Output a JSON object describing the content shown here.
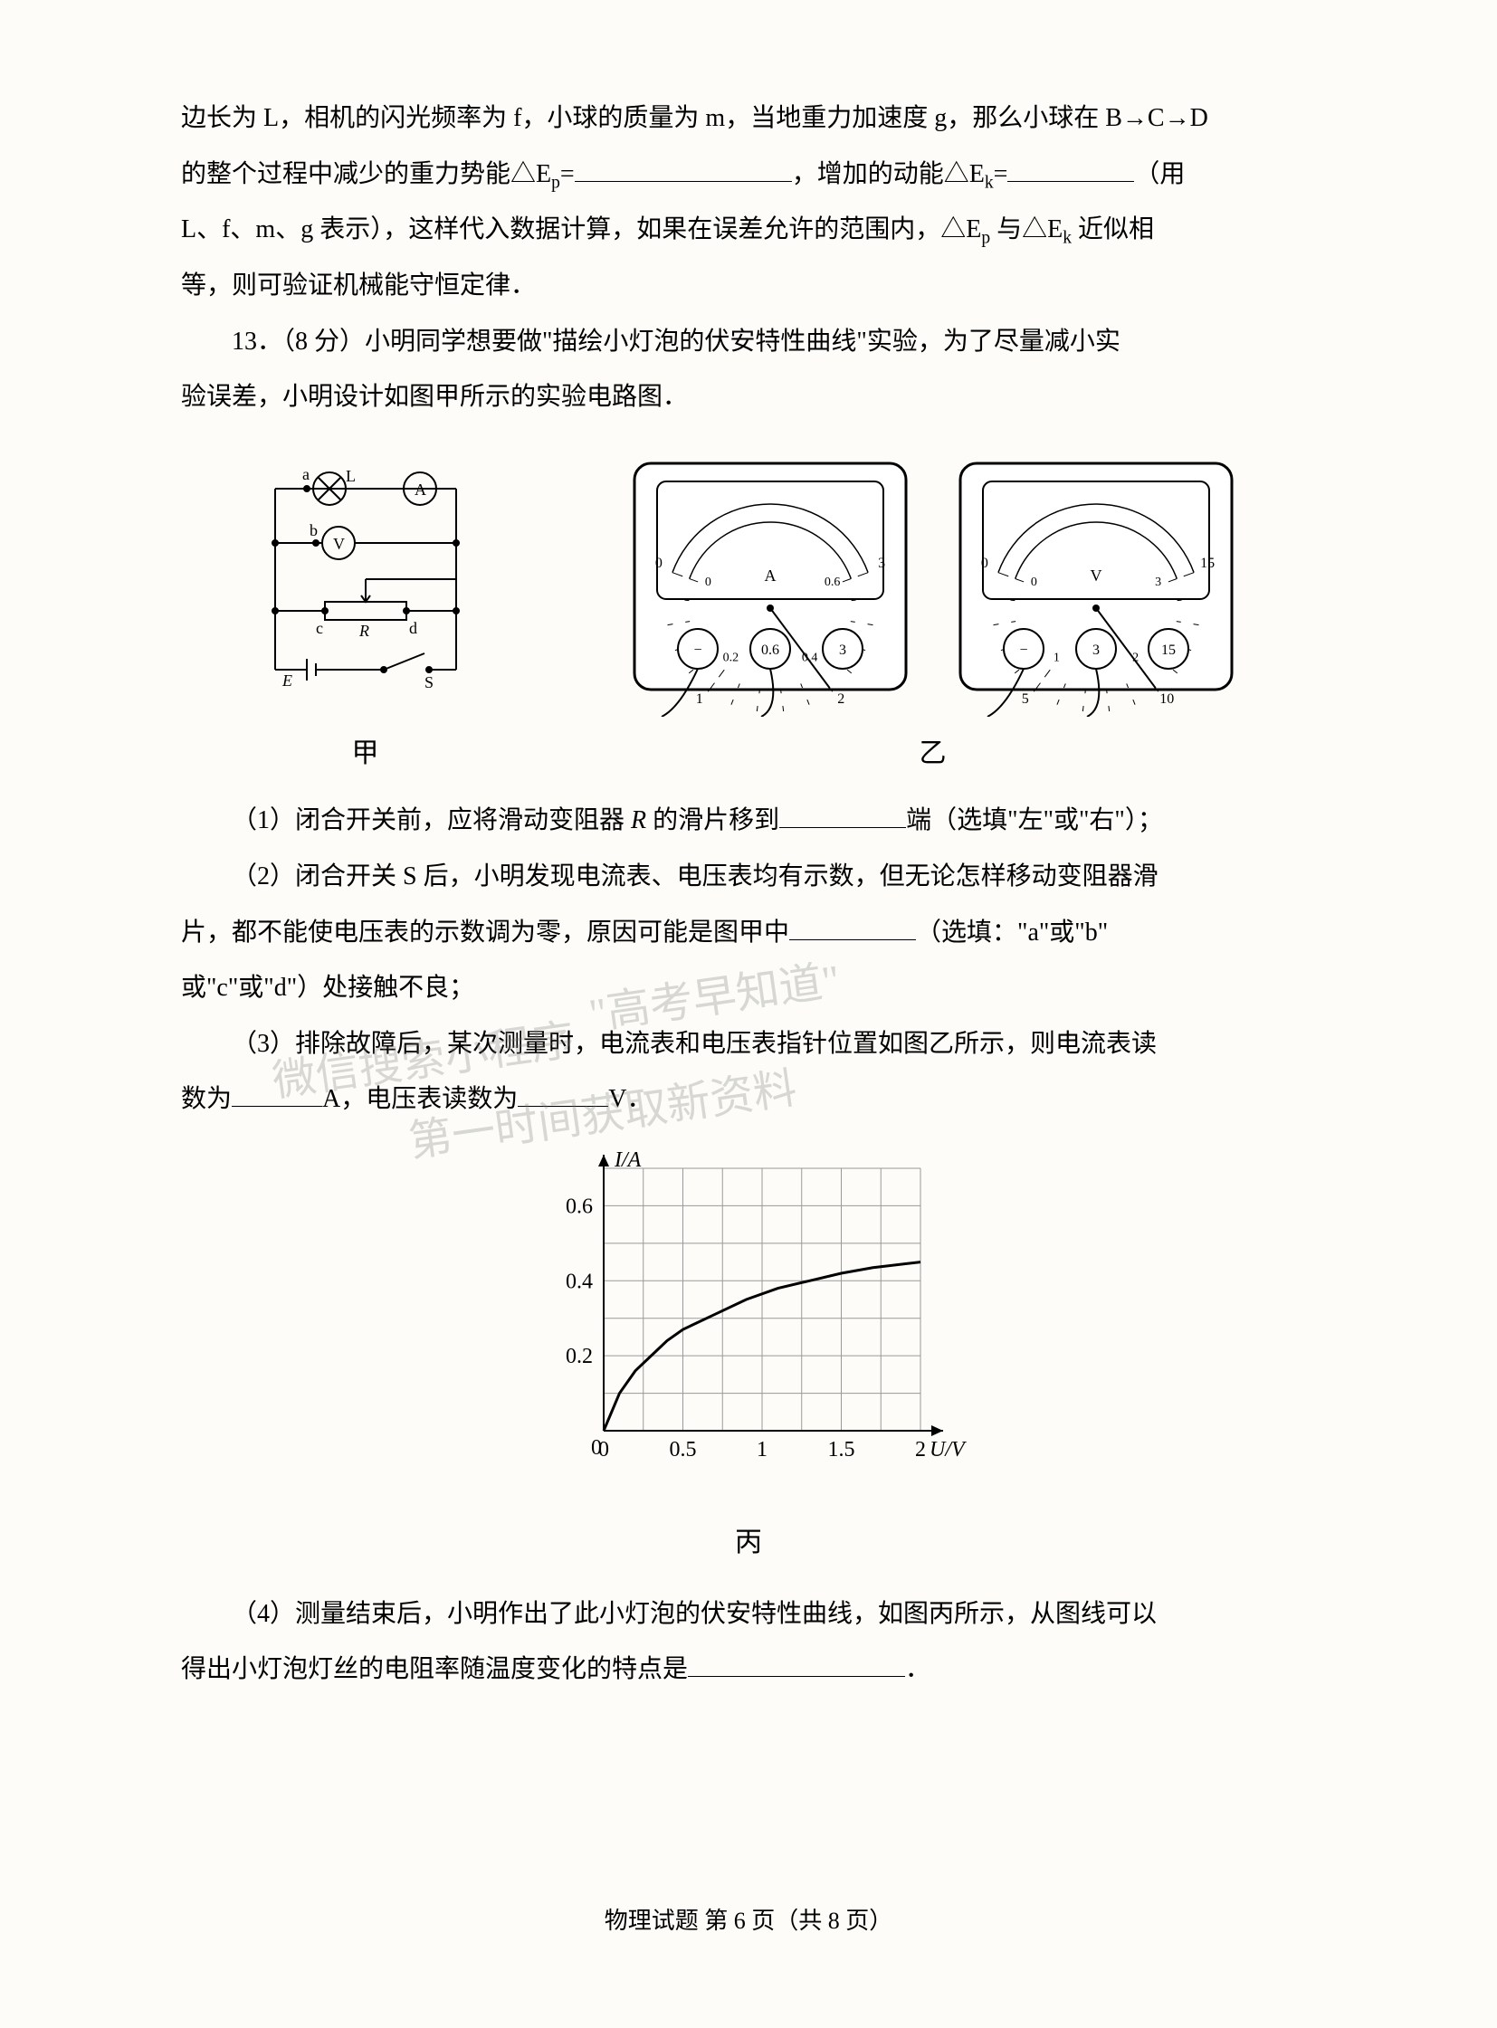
{
  "continuation": {
    "p1": "边长为 L，相机的闪光频率为 f，小球的质量为 m，当地重力加速度 g，那么小球在 B→C→D",
    "p2a": "的整个过程中减少的重力势能△E",
    "p2a_sub": "p",
    "p2b": "=",
    "p2c": "，增加的动能△E",
    "p2c_sub": "k",
    "p2d": "=",
    "p2e": "（用",
    "p3": "L、f、m、g 表示），这样代入数据计算，如果在误差允许的范围内，△E",
    "p3_sub1": "p",
    "p3b": " 与△E",
    "p3_sub2": "k",
    "p3c": " 近似相",
    "p4": "等，则可验证机械能守恒定律．"
  },
  "q13": {
    "intro1": "13．（8 分）小明同学想要做\"描绘小灯泡的伏安特性曲线\"实验，为了尽量减小实",
    "intro2": "验误差，小明设计如图甲所示的实验电路图．",
    "part1a": "（1）闭合开关前，应将滑动变阻器 ",
    "part1b": " 的滑片移到",
    "part1c": "端（选填\"左\"或\"右\"）；",
    "part2a": "（2）闭合开关 S 后，小明发现电流表、电压表均有示数，但无论怎样移动变阻器滑",
    "part2b": "片，都不能使电压表的示数调为零，原因可能是图甲中",
    "part2c": "（选填：\"a\"或\"b\"",
    "part2d": "或\"c\"或\"d\"）处接触不良；",
    "part3a": "（3）排除故障后，某次测量时，电流表和电压表指针位置如图乙所示，则电流表读",
    "part3b": "数为",
    "part3c": "A，电压表读数为",
    "part3d": "V．",
    "part4a": "（4）测量结束后，小明作出了此小灯泡的伏安特性曲线，如图丙所示，从图线可以",
    "part4b": "得出小灯泡灯丝的电阻率随温度变化的特点是",
    "part4c": "．",
    "R_label": "R",
    "fig_jia_label": "甲",
    "fig_yi_label": "乙",
    "fig_bing_label": "丙"
  },
  "circuit": {
    "labels": {
      "a": "a",
      "b": "b",
      "c": "c",
      "d": "d",
      "L": "L",
      "A": "A",
      "V": "V",
      "R": "R",
      "E": "E",
      "S": "S"
    },
    "stroke": "#000000",
    "stroke_width": 2
  },
  "ammeter": {
    "outer_ticks": [
      "0",
      "1",
      "2",
      "3"
    ],
    "inner_ticks": [
      "0",
      "0.2",
      "0.4",
      "0.6"
    ],
    "unit": "A",
    "buttons": [
      "−",
      "0.6",
      "3"
    ],
    "needle_value_inner": 0.4,
    "scale_max_inner": 0.6,
    "body_stroke": "#000000",
    "bg": "#ffffff"
  },
  "voltmeter": {
    "outer_ticks": [
      "0",
      "5",
      "10",
      "15"
    ],
    "inner_ticks": [
      "0",
      "1",
      "2",
      "3"
    ],
    "unit": "V",
    "buttons": [
      "−",
      "3",
      "15"
    ],
    "needle_value_inner": 2.0,
    "scale_max_inner": 3,
    "body_stroke": "#000000",
    "bg": "#ffffff"
  },
  "chart": {
    "type": "line",
    "x_label": "U/V",
    "y_label": "I/A",
    "xlim": [
      0,
      2
    ],
    "ylim": [
      0,
      0.7
    ],
    "x_ticks": [
      0,
      0.5,
      1,
      1.5,
      2
    ],
    "x_tick_labels": [
      "0",
      "0.5",
      "1",
      "1.5",
      "2"
    ],
    "y_ticks": [
      0,
      0.2,
      0.4,
      0.6
    ],
    "y_tick_labels": [
      "0.2",
      "0.4",
      "0.6"
    ],
    "grid_step_x": 0.25,
    "grid_step_y": 0.1,
    "grid_color": "#999999",
    "axis_color": "#000000",
    "curve_color": "#000000",
    "curve_width": 3,
    "data_points": [
      [
        0,
        0
      ],
      [
        0.1,
        0.1
      ],
      [
        0.2,
        0.16
      ],
      [
        0.3,
        0.2
      ],
      [
        0.4,
        0.24
      ],
      [
        0.5,
        0.27
      ],
      [
        0.7,
        0.31
      ],
      [
        0.9,
        0.35
      ],
      [
        1.1,
        0.38
      ],
      [
        1.3,
        0.4
      ],
      [
        1.5,
        0.42
      ],
      [
        1.7,
        0.435
      ],
      [
        1.9,
        0.445
      ],
      [
        2.0,
        0.45
      ]
    ],
    "font_size_axis": 24
  },
  "footer": {
    "text": "物理试题  第 6 页（共 8 页）"
  },
  "watermarks": {
    "w1": "\"高考早知道\"",
    "w2": "微信搜索小程序",
    "w3": "第一时间获取新资料"
  }
}
